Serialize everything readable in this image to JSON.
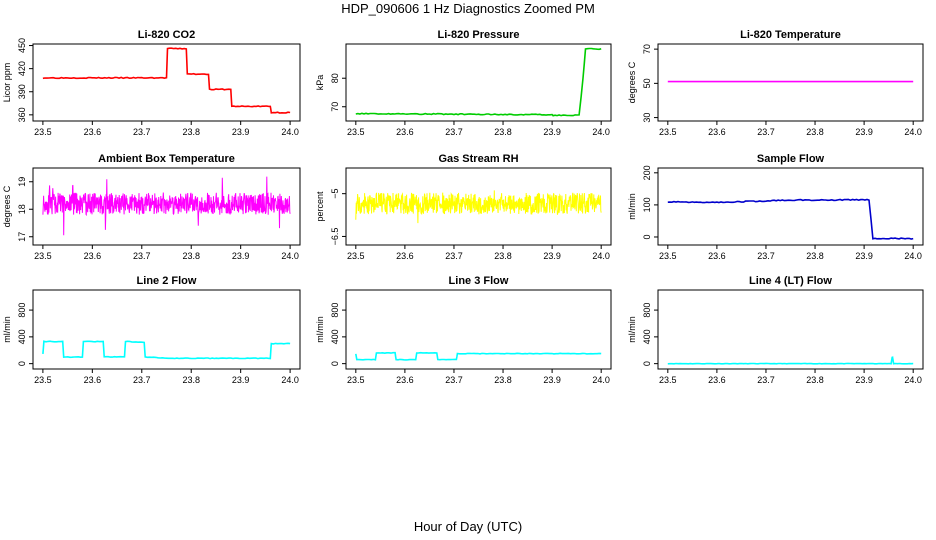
{
  "page": {
    "title": "HDP_090606  1 Hz Diagnostics Zoomed PM",
    "xlabel": "Hour of Day (UTC)"
  },
  "chart_data": [
    {
      "type": "line",
      "title": "Li-820 CO2",
      "ylabel": "Licor ppm",
      "color": "#ff0000",
      "xlim": [
        23.5,
        24.0
      ],
      "xticks": [
        "23.5",
        "23.6",
        "23.7",
        "23.8",
        "23.9",
        "24.0"
      ],
      "ylim": [
        352,
        452
      ],
      "yticks": [
        360,
        390,
        420,
        450
      ],
      "noise": 0.6,
      "x": [
        23.5,
        23.75,
        23.752,
        23.79,
        23.792,
        23.835,
        23.837,
        23.88,
        23.882,
        23.96,
        23.962,
        24.0
      ],
      "y": [
        408,
        408,
        446,
        446,
        413,
        413,
        393,
        393,
        371,
        371,
        363,
        363
      ]
    },
    {
      "type": "line",
      "title": "Li-820 Pressure",
      "ylabel": "kPa",
      "color": "#00cc00",
      "xlim": [
        23.5,
        24.0
      ],
      "xticks": [
        "23.5",
        "23.6",
        "23.7",
        "23.8",
        "23.9",
        "24.0"
      ],
      "ylim": [
        65,
        92
      ],
      "yticks": [
        70,
        80
      ],
      "noise": 0.15,
      "x": [
        23.5,
        23.9,
        23.902,
        23.955,
        23.963,
        23.968,
        24.0
      ],
      "y": [
        67.6,
        67.2,
        67.0,
        67.0,
        80,
        90.3,
        90.3
      ]
    },
    {
      "type": "line",
      "title": "Li-820 Temperature",
      "ylabel": "degrees C",
      "color": "#ff00ff",
      "xlim": [
        23.5,
        24.0
      ],
      "xticks": [
        "23.5",
        "23.6",
        "23.7",
        "23.8",
        "23.9",
        "24.0"
      ],
      "ylim": [
        28,
        73
      ],
      "yticks": [
        30,
        50,
        70
      ],
      "noise": 0,
      "x": [
        23.5,
        24.0
      ],
      "y": [
        51.0,
        51.0
      ]
    },
    {
      "type": "line",
      "title": "Ambient Box Temperature",
      "ylabel": "degrees C",
      "color": "#ff00ff",
      "xlim": [
        23.5,
        24.0
      ],
      "xticks": [
        "23.5",
        "23.6",
        "23.7",
        "23.8",
        "23.9",
        "24.0"
      ],
      "ylim": [
        16.7,
        19.5
      ],
      "yticks": [
        17.0,
        18.0,
        19.0
      ],
      "noise": 0.4,
      "density": 700,
      "seed": 11,
      "x": [
        23.5,
        24.0
      ],
      "y": [
        18.2,
        18.2
      ]
    },
    {
      "type": "line",
      "title": "Gas Stream RH",
      "ylabel": "percent",
      "color": "#ffff00",
      "xlim": [
        23.5,
        24.0
      ],
      "xticks": [
        "23.5",
        "23.6",
        "23.7",
        "23.8",
        "23.9",
        "24.0"
      ],
      "ylim": [
        -6.8,
        -4.1
      ],
      "yticks": [
        -6.5,
        -5.0
      ],
      "noise": 0.38,
      "density": 700,
      "seed": 23,
      "x": [
        23.5,
        24.0
      ],
      "y": [
        -5.35,
        -5.35
      ]
    },
    {
      "type": "line",
      "title": "Sample Flow",
      "ylabel": "ml/min",
      "color": "#0000cc",
      "xlim": [
        23.5,
        24.0
      ],
      "xticks": [
        "23.5",
        "23.6",
        "23.7",
        "23.8",
        "23.9",
        "24.0"
      ],
      "ylim": [
        -25,
        215
      ],
      "yticks": [
        0,
        100,
        200
      ],
      "noise": 1.5,
      "x": [
        23.5,
        23.6,
        23.65,
        23.75,
        23.91,
        23.918,
        24.0
      ],
      "y": [
        110,
        108,
        110,
        115,
        116,
        -5,
        -5
      ]
    },
    {
      "type": "line",
      "title": "Line 2 Flow",
      "ylabel": "ml/min",
      "color": "#00ffff",
      "xlim": [
        23.5,
        24.0
      ],
      "xticks": [
        "23.5",
        "23.6",
        "23.7",
        "23.8",
        "23.9",
        "24.0"
      ],
      "ylim": [
        -80,
        1100
      ],
      "yticks": [
        0,
        400,
        800
      ],
      "noise": 5,
      "x": [
        23.5,
        23.502,
        23.54,
        23.542,
        23.58,
        23.582,
        23.622,
        23.624,
        23.665,
        23.667,
        23.705,
        23.707,
        23.75,
        23.96,
        23.962,
        24.0
      ],
      "y": [
        150,
        330,
        330,
        100,
        100,
        330,
        330,
        100,
        100,
        330,
        320,
        100,
        80,
        80,
        300,
        300
      ]
    },
    {
      "type": "line",
      "title": "Line 3 Flow",
      "ylabel": "ml/min",
      "color": "#00ffff",
      "xlim": [
        23.5,
        24.0
      ],
      "xticks": [
        "23.5",
        "23.6",
        "23.7",
        "23.8",
        "23.9",
        "24.0"
      ],
      "ylim": [
        -80,
        1100
      ],
      "yticks": [
        0,
        400,
        800
      ],
      "noise": 4,
      "x": [
        23.5,
        23.502,
        23.54,
        23.542,
        23.58,
        23.582,
        23.622,
        23.624,
        23.665,
        23.667,
        23.705,
        23.707,
        24.0
      ],
      "y": [
        150,
        60,
        60,
        160,
        160,
        60,
        60,
        160,
        160,
        60,
        60,
        150,
        150
      ]
    },
    {
      "type": "line",
      "title": "Line 4 (LT) Flow",
      "ylabel": "ml/min",
      "color": "#00ffff",
      "xlim": [
        23.5,
        24.0
      ],
      "xticks": [
        "23.5",
        "23.6",
        "23.7",
        "23.8",
        "23.9",
        "24.0"
      ],
      "ylim": [
        -80,
        1100
      ],
      "yticks": [
        0,
        400,
        800
      ],
      "noise": 3,
      "x": [
        23.5,
        23.955,
        23.957,
        23.958,
        23.96,
        24.0
      ],
      "y": [
        0,
        0,
        90,
        90,
        0,
        0
      ]
    }
  ]
}
